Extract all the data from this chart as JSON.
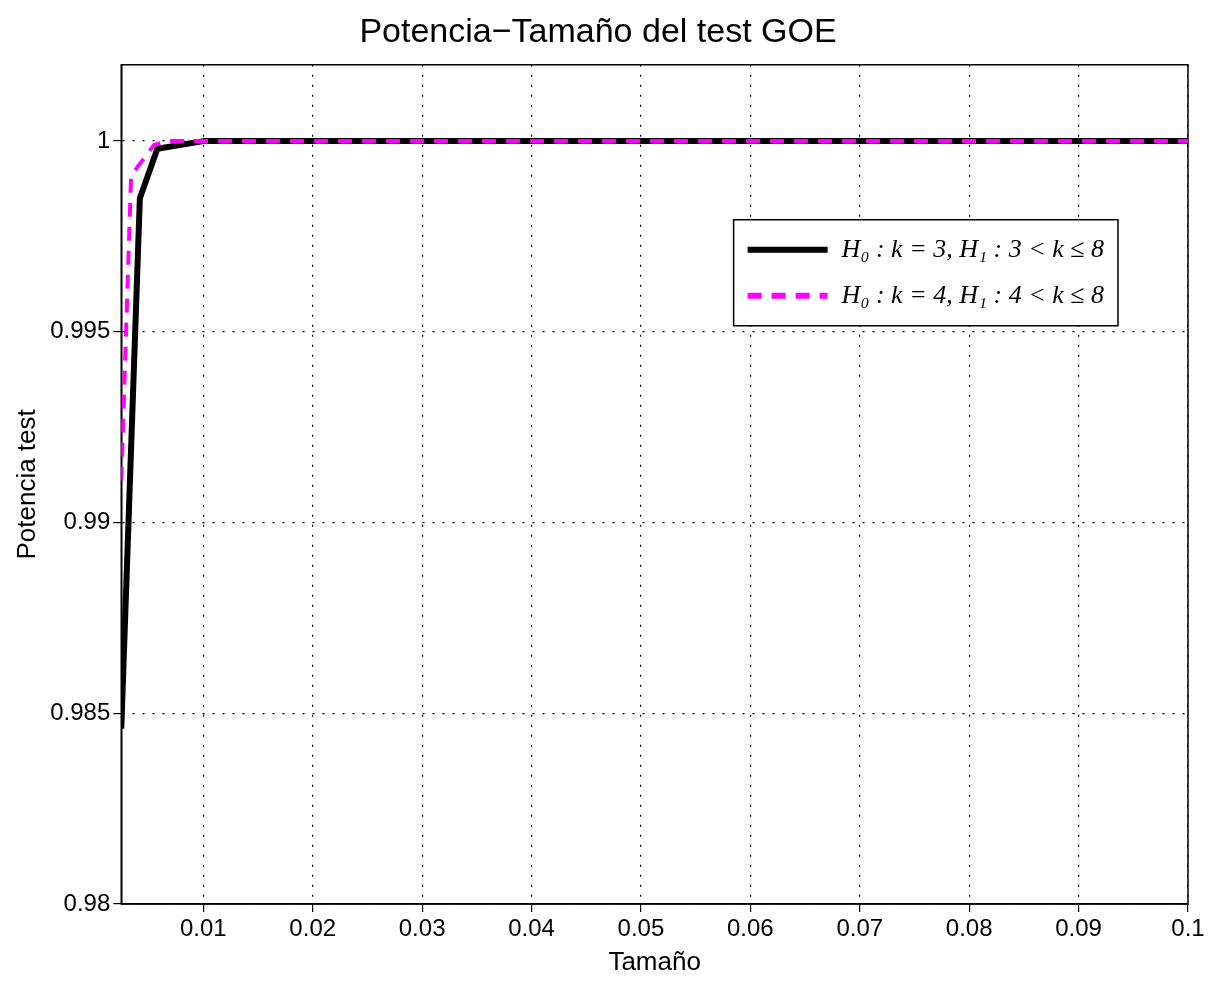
{
  "chart_data": {
    "type": "line",
    "title": "Potencia−Tamaño del test GOE",
    "xlabel": "Tamaño",
    "ylabel": "Potencia test",
    "xlim": [
      0.0025,
      0.1
    ],
    "xticks": [
      0.01,
      0.02,
      0.03,
      0.04,
      0.05,
      0.06,
      0.07,
      0.08,
      0.09,
      0.1
    ],
    "ylim": [
      0.98,
      1.002
    ],
    "yticks": [
      0.98,
      0.985,
      0.99,
      0.995,
      1
    ],
    "grid": true,
    "legend": "top right",
    "marker": "none",
    "series": [
      {
        "name": "H₀ : k = 3, H₁ : 3 < k ≤ 8",
        "color": "#000000",
        "line_style": "solid",
        "x": [
          0.0025,
          0.0042,
          0.0058,
          0.01,
          0.1
        ],
        "values": [
          0.9846,
          0.9985,
          0.9998,
          1,
          1
        ]
      },
      {
        "name": "H₀ : k = 4, H₁ : 4 < k ≤ 8",
        "color": "#ff00ff",
        "line_style": "dashed",
        "x": [
          0.0025,
          0.0034,
          0.0055,
          0.0068,
          0.1
        ],
        "values": [
          0.9911,
          0.9991,
          0.9999,
          1,
          1
        ]
      }
    ]
  }
}
